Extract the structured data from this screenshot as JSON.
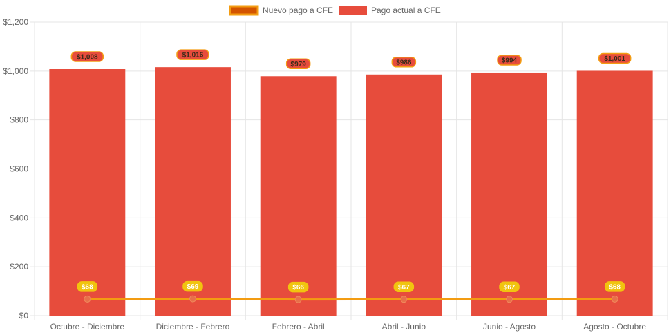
{
  "chart_data": {
    "type": "bar",
    "categories": [
      "Octubre - Diciembre",
      "Diciembre - Febrero",
      "Febrero - Abril",
      "Abril - Junio",
      "Junio - Agosto",
      "Agosto - Octubre"
    ],
    "series": [
      {
        "name": "Nuevo pago a CFE",
        "type": "line",
        "values": [
          68,
          69,
          66,
          67,
          67,
          68
        ],
        "labels": [
          "$68",
          "$69",
          "$66",
          "$67",
          "$67",
          "$68"
        ],
        "color": "#f39c12",
        "fill_color": "#d35400"
      },
      {
        "name": "Pago actual a CFE",
        "type": "bar",
        "values": [
          1008,
          1016,
          979,
          986,
          994,
          1001
        ],
        "labels": [
          "$1,008",
          "$1,016",
          "$979",
          "$986",
          "$994",
          "$1,001"
        ],
        "color": "#e74c3c"
      }
    ],
    "ylim": [
      0,
      1200
    ],
    "yticks": [
      0,
      200,
      400,
      600,
      800,
      1000,
      1200
    ],
    "ytick_labels": [
      "$0",
      "$200",
      "$400",
      "$600",
      "$800",
      "$1,000",
      "$1,200"
    ],
    "title": "",
    "xlabel": "",
    "ylabel": "",
    "legend_position": "top",
    "grid": true
  },
  "colors": {
    "grid": "#e5e5e5",
    "axis_text": "#666666",
    "label_bg_line": "#f1c40f",
    "label_border_bar": "#f39c12"
  }
}
